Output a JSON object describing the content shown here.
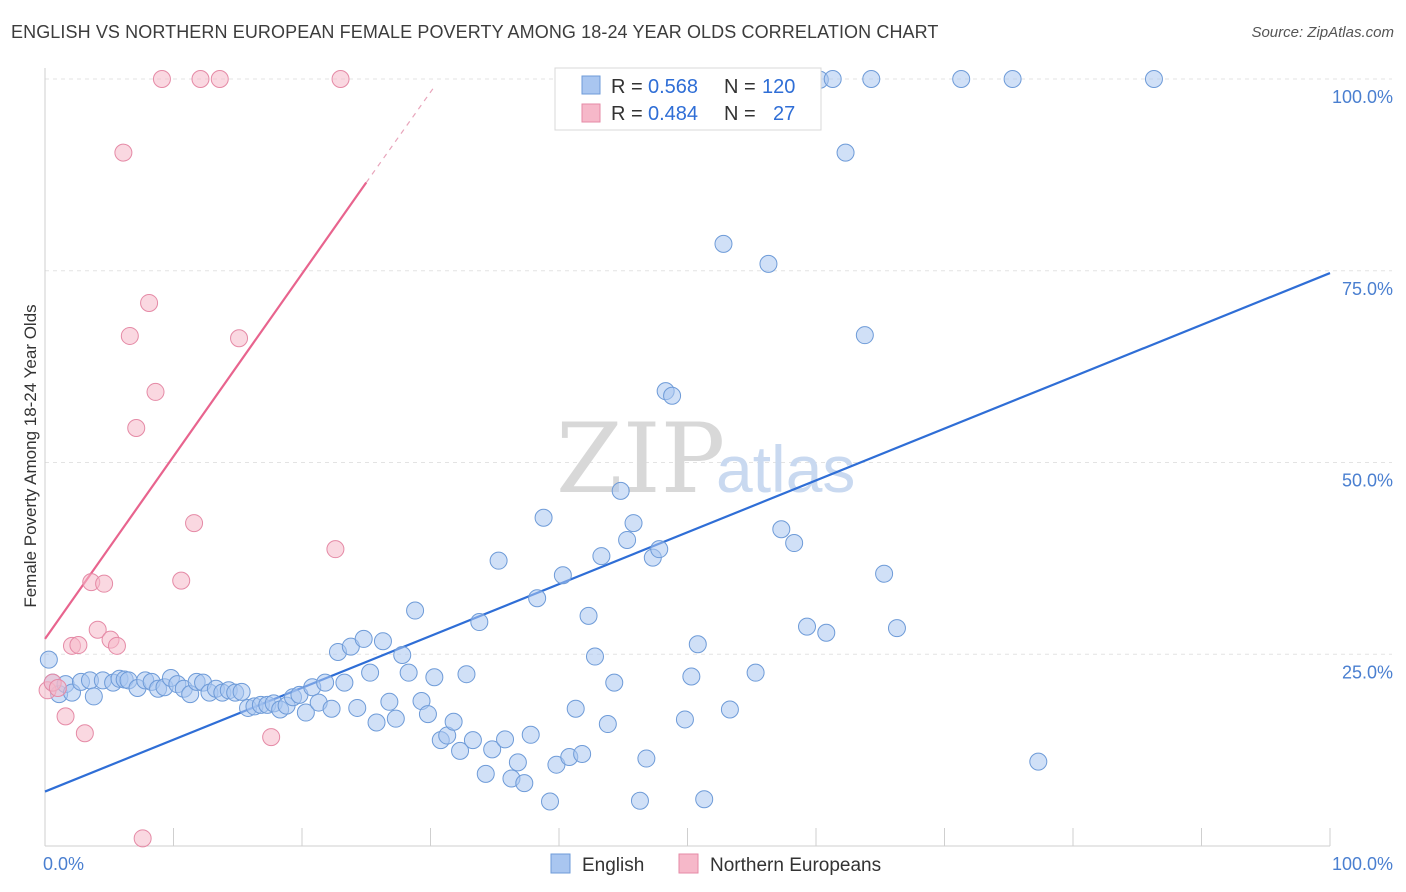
{
  "title": "ENGLISH VS NORTHERN EUROPEAN FEMALE POVERTY AMONG 18-24 YEAR OLDS CORRELATION CHART",
  "source": "Source: ZipAtlas.com",
  "watermark": {
    "zip": "ZIP",
    "atlas": "atlas"
  },
  "legend_top": {
    "rows": [
      {
        "r_label": "R =",
        "r_value": "0.568",
        "n_label": "N =",
        "n_value": "120",
        "color": "#a9c6f0",
        "stroke": "#6e9bd8"
      },
      {
        "r_label": "R =",
        "r_value": "0.484",
        "n_label": "N =",
        "n_value": "27",
        "color": "#f6b8c9",
        "stroke": "#e58aa6"
      }
    ]
  },
  "chart_data": {
    "type": "scatter",
    "xlabel": "",
    "ylabel": "Female Poverty Among 18-24 Year Olds",
    "xlim": [
      0,
      100
    ],
    "ylim": [
      0,
      100
    ],
    "x_tick_labels": [
      "0.0%",
      "100.0%"
    ],
    "y_tick_labels": [
      {
        "value": 100,
        "label": "100.0%"
      },
      {
        "value": 75,
        "label": "75.0%"
      },
      {
        "value": 50,
        "label": "50.0%"
      },
      {
        "value": 25,
        "label": "25.0%"
      }
    ],
    "grid": true,
    "legend": "bottom-center",
    "series": [
      {
        "name": "English",
        "color": "#a9c6f0",
        "stroke": "#6e9bd8",
        "trend_color": "#2f6ed6",
        "trend": {
          "x0": 0,
          "y0": 7.1,
          "x1": 100,
          "y1": 74.7
        },
        "points": [
          [
            0.3,
            24.3
          ],
          [
            0.6,
            21.3
          ],
          [
            1.1,
            19.8
          ],
          [
            1.6,
            21.1
          ],
          [
            2.1,
            20.0
          ],
          [
            2.8,
            21.4
          ],
          [
            3.5,
            21.6
          ],
          [
            3.8,
            19.5
          ],
          [
            4.5,
            21.6
          ],
          [
            5.3,
            21.3
          ],
          [
            5.8,
            21.8
          ],
          [
            6.2,
            21.7
          ],
          [
            6.5,
            21.6
          ],
          [
            7.2,
            20.6
          ],
          [
            7.8,
            21.6
          ],
          [
            8.3,
            21.4
          ],
          [
            8.8,
            20.5
          ],
          [
            9.3,
            20.7
          ],
          [
            9.8,
            21.9
          ],
          [
            10.3,
            21.1
          ],
          [
            10.8,
            20.5
          ],
          [
            11.3,
            19.8
          ],
          [
            11.8,
            21.4
          ],
          [
            12.3,
            21.3
          ],
          [
            12.8,
            20.0
          ],
          [
            13.3,
            20.5
          ],
          [
            13.8,
            20.0
          ],
          [
            14.3,
            20.3
          ],
          [
            14.8,
            20.0
          ],
          [
            15.3,
            20.1
          ],
          [
            15.8,
            18.0
          ],
          [
            16.3,
            18.2
          ],
          [
            16.8,
            18.4
          ],
          [
            17.3,
            18.4
          ],
          [
            17.8,
            18.6
          ],
          [
            18.3,
            17.8
          ],
          [
            18.8,
            18.3
          ],
          [
            19.3,
            19.4
          ],
          [
            19.8,
            19.7
          ],
          [
            20.3,
            17.4
          ],
          [
            20.8,
            20.7
          ],
          [
            21.3,
            18.7
          ],
          [
            21.8,
            21.3
          ],
          [
            22.3,
            17.9
          ],
          [
            22.8,
            25.3
          ],
          [
            23.3,
            21.3
          ],
          [
            23.8,
            26.0
          ],
          [
            24.3,
            18.0
          ],
          [
            24.8,
            27.0
          ],
          [
            25.3,
            22.6
          ],
          [
            25.8,
            16.1
          ],
          [
            26.3,
            26.7
          ],
          [
            26.8,
            18.8
          ],
          [
            27.3,
            16.6
          ],
          [
            27.8,
            24.9
          ],
          [
            28.3,
            22.6
          ],
          [
            28.8,
            30.7
          ],
          [
            29.3,
            18.9
          ],
          [
            29.8,
            17.2
          ],
          [
            30.3,
            22.0
          ],
          [
            30.8,
            13.8
          ],
          [
            31.3,
            14.4
          ],
          [
            31.8,
            16.2
          ],
          [
            32.3,
            12.4
          ],
          [
            32.8,
            22.4
          ],
          [
            33.3,
            13.8
          ],
          [
            33.8,
            29.2
          ],
          [
            34.3,
            9.4
          ],
          [
            34.8,
            12.6
          ],
          [
            35.3,
            37.2
          ],
          [
            35.8,
            13.9
          ],
          [
            36.3,
            8.8
          ],
          [
            36.8,
            10.9
          ],
          [
            37.3,
            8.2
          ],
          [
            37.8,
            14.5
          ],
          [
            38.3,
            32.3
          ],
          [
            38.8,
            42.8
          ],
          [
            39.3,
            5.8
          ],
          [
            39.8,
            10.6
          ],
          [
            40.3,
            35.3
          ],
          [
            40.8,
            11.6
          ],
          [
            41.3,
            17.9
          ],
          [
            41.8,
            12.0
          ],
          [
            42.3,
            30.0
          ],
          [
            42.8,
            24.7
          ],
          [
            43.3,
            37.8
          ],
          [
            43.8,
            15.9
          ],
          [
            44.3,
            21.3
          ],
          [
            44.8,
            46.3
          ],
          [
            45.3,
            39.9
          ],
          [
            45.8,
            42.1
          ],
          [
            46.3,
            5.9
          ],
          [
            46.8,
            11.4
          ],
          [
            47.3,
            37.6
          ],
          [
            47.8,
            38.7
          ],
          [
            48.3,
            59.3
          ],
          [
            48.8,
            58.7
          ],
          [
            49.3,
            99.9
          ],
          [
            49.8,
            16.5
          ],
          [
            50.3,
            22.1
          ],
          [
            50.8,
            26.3
          ],
          [
            51.3,
            6.1
          ],
          [
            52.3,
            100.0
          ],
          [
            52.8,
            78.5
          ],
          [
            53.3,
            17.8
          ],
          [
            55.3,
            22.6
          ],
          [
            56.3,
            75.9
          ],
          [
            57.3,
            41.3
          ],
          [
            58.3,
            39.5
          ],
          [
            59.3,
            28.6
          ],
          [
            60.3,
            99.9
          ],
          [
            60.8,
            27.8
          ],
          [
            61.3,
            100.0
          ],
          [
            62.3,
            90.4
          ],
          [
            63.8,
            66.6
          ],
          [
            64.3,
            100.0
          ],
          [
            65.3,
            35.5
          ],
          [
            66.3,
            28.4
          ],
          [
            71.3,
            100.0
          ],
          [
            75.3,
            100.0
          ],
          [
            77.3,
            11.0
          ],
          [
            86.3,
            100.0
          ]
        ]
      },
      {
        "name": "Northern Europeans",
        "color": "#f6b8c9",
        "stroke": "#e58aa6",
        "trend_color": "#e8648e",
        "trend": {
          "x0": 0,
          "y0": 27.0,
          "x1": 25.0,
          "y1": 86.5
        },
        "trend_dashed_to": {
          "x": 30.3,
          "y": 99.0
        },
        "points": [
          [
            0.2,
            20.3
          ],
          [
            0.6,
            21.3
          ],
          [
            1.0,
            20.6
          ],
          [
            1.6,
            16.9
          ],
          [
            2.1,
            26.1
          ],
          [
            2.6,
            26.2
          ],
          [
            3.1,
            14.7
          ],
          [
            3.6,
            34.4
          ],
          [
            4.1,
            28.2
          ],
          [
            4.6,
            34.2
          ],
          [
            5.1,
            26.9
          ],
          [
            5.6,
            26.1
          ],
          [
            6.1,
            90.4
          ],
          [
            6.6,
            66.5
          ],
          [
            7.1,
            54.5
          ],
          [
            7.6,
            1.0
          ],
          [
            8.1,
            70.8
          ],
          [
            8.6,
            59.2
          ],
          [
            9.1,
            100.0
          ],
          [
            10.6,
            34.6
          ],
          [
            11.6,
            42.1
          ],
          [
            12.1,
            100.0
          ],
          [
            13.6,
            100.0
          ],
          [
            15.1,
            66.2
          ],
          [
            17.6,
            14.2
          ],
          [
            22.6,
            38.7
          ],
          [
            23.0,
            100.0
          ]
        ]
      }
    ]
  }
}
